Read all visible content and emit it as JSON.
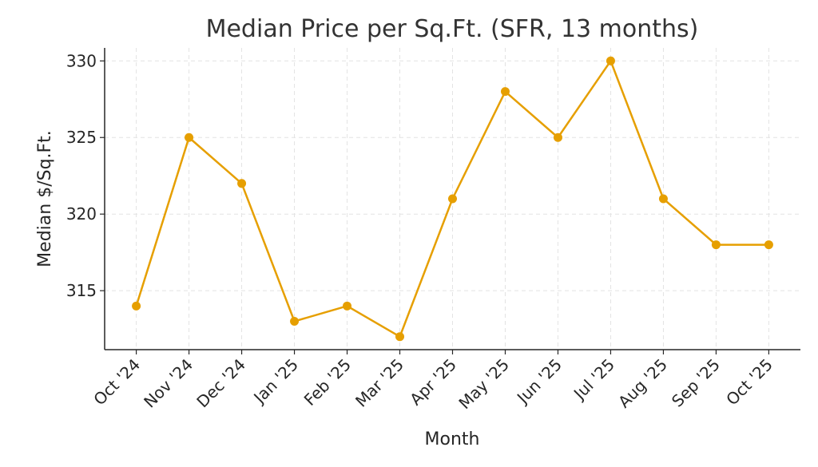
{
  "chart_data": {
    "type": "line",
    "title": "Median Price per Sq.Ft. (SFR, 13 months)",
    "xlabel": "Month",
    "ylabel": "Median $/Sq.Ft.",
    "categories": [
      "Oct '24",
      "Nov '24",
      "Dec '24",
      "Jan '25",
      "Feb '25",
      "Mar '25",
      "Apr '25",
      "May '25",
      "Jun '25",
      "Jul '25",
      "Aug '25",
      "Sep '25",
      "Oct '25"
    ],
    "values": [
      314,
      325,
      322,
      313,
      314,
      312,
      321,
      328,
      325,
      330,
      321,
      318,
      318
    ],
    "yticks": [
      315,
      320,
      325,
      330
    ],
    "ylim": [
      311.15,
      330.85
    ],
    "grid": true,
    "color": "#E69F00"
  }
}
